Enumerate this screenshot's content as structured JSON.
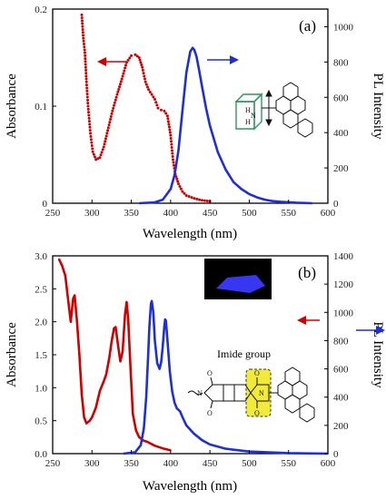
{
  "chart_data": [
    {
      "type": "line",
      "panel_label": "(a)",
      "xlabel": "Wavelength (nm)",
      "ylabel_left": "Absorbance",
      "ylabel_right": "PL Intensity",
      "xlim": [
        250,
        600
      ],
      "ylim_left": [
        0,
        0.2
      ],
      "ylim_right": [
        0,
        1100
      ],
      "x_ticks": [
        "250",
        "300",
        "350",
        "400",
        "450",
        "500",
        "550",
        "600"
      ],
      "y_ticks_left": [
        "0",
        "0.1",
        "0.2"
      ],
      "y_ticks_right": [
        "0",
        "200",
        "400",
        "600",
        "800",
        "1000"
      ],
      "colors": {
        "absorbance": "#d10000",
        "pl": "#1f2fd6"
      },
      "series": [
        {
          "axis": "left",
          "style": "dots",
          "x": [
            287,
            289,
            291,
            293,
            295,
            298,
            301,
            305,
            310,
            315,
            320,
            326,
            332,
            338,
            344,
            350,
            355,
            360,
            364,
            368,
            372,
            376,
            380,
            384,
            388,
            392,
            396,
            400,
            403,
            406,
            410,
            415,
            420,
            430,
            440,
            450
          ],
          "y": [
            0.194,
            0.17,
            0.155,
            0.125,
            0.1,
            0.072,
            0.053,
            0.045,
            0.047,
            0.058,
            0.075,
            0.095,
            0.112,
            0.128,
            0.145,
            0.152,
            0.153,
            0.15,
            0.14,
            0.125,
            0.117,
            0.112,
            0.107,
            0.098,
            0.096,
            0.095,
            0.09,
            0.07,
            0.045,
            0.03,
            0.02,
            0.012,
            0.008,
            0.005,
            0.003,
            0.002
          ]
        },
        {
          "axis": "right",
          "style": "line",
          "x": [
            360,
            380,
            390,
            400,
            405,
            410,
            415,
            420,
            425,
            428,
            430,
            433,
            436,
            440,
            445,
            450,
            460,
            470,
            480,
            490,
            500,
            510,
            520,
            530,
            540,
            560,
            580
          ],
          "y": [
            0,
            5,
            20,
            80,
            160,
            300,
            520,
            740,
            860,
            880,
            870,
            830,
            760,
            660,
            540,
            440,
            290,
            190,
            120,
            80,
            52,
            33,
            20,
            12,
            8,
            3,
            0
          ]
        }
      ],
      "annotations": {
        "molecule": {
          "nh": "H",
          "n": "N",
          "h2": "H"
        }
      }
    },
    {
      "type": "line",
      "panel_label": "(b)",
      "xlabel": "Wavelength (nm)",
      "ylabel_left": "Absorbance",
      "ylabel_right": "PL Intensity",
      "xlim": [
        250,
        600
      ],
      "ylim_left": [
        0,
        3.0
      ],
      "ylim_right": [
        0,
        1400
      ],
      "x_ticks": [
        "250",
        "300",
        "350",
        "400",
        "450",
        "500",
        "550",
        "600"
      ],
      "y_ticks_left": [
        "0.0",
        "0.5",
        "1.0",
        "1.5",
        "2.0",
        "2.5",
        "3.0"
      ],
      "y_ticks_right": [
        "0",
        "200",
        "400",
        "600",
        "800",
        "1000",
        "1200",
        "1400"
      ],
      "colors": {
        "absorbance": "#d10000",
        "pl": "#1f2fd6"
      },
      "series": [
        {
          "axis": "left",
          "style": "line",
          "x": [
            258,
            262,
            266,
            270,
            273,
            276,
            278,
            281,
            284,
            287,
            290,
            293,
            297,
            300,
            305,
            310,
            315,
            318,
            322,
            325,
            328,
            330,
            333,
            336,
            339,
            342,
            344,
            346,
            349,
            352,
            356,
            360,
            365,
            370,
            380,
            390,
            400
          ],
          "y": [
            2.95,
            2.85,
            2.7,
            2.3,
            2.0,
            2.35,
            2.4,
            2.0,
            1.5,
            0.9,
            0.55,
            0.46,
            0.5,
            0.55,
            0.7,
            0.95,
            1.1,
            1.2,
            1.45,
            1.7,
            1.9,
            1.92,
            1.65,
            1.4,
            1.55,
            2.1,
            2.3,
            2.05,
            1.3,
            0.6,
            0.35,
            0.25,
            0.2,
            0.18,
            0.12,
            0.08,
            0.05
          ]
        },
        {
          "axis": "right",
          "style": "line",
          "x": [
            340,
            355,
            362,
            366,
            369,
            371,
            373,
            375,
            376,
            378,
            380,
            383,
            386,
            388,
            390,
            392,
            393,
            394,
            396,
            399,
            402,
            405,
            408,
            412,
            415,
            420,
            430,
            440,
            450,
            470,
            500,
            550,
            600
          ],
          "y": [
            0,
            10,
            60,
            180,
            400,
            650,
            900,
            1060,
            1080,
            1000,
            800,
            640,
            600,
            650,
            760,
            900,
            950,
            940,
            800,
            580,
            440,
            360,
            320,
            300,
            260,
            200,
            140,
            95,
            65,
            35,
            15,
            4,
            0
          ]
        }
      ],
      "annotations": {
        "imide_label": "Imide group",
        "molecule": {
          "n1": "N",
          "n2": "N",
          "o1": "O",
          "o2": "O",
          "o3": "O",
          "o4": "O"
        }
      }
    }
  ]
}
